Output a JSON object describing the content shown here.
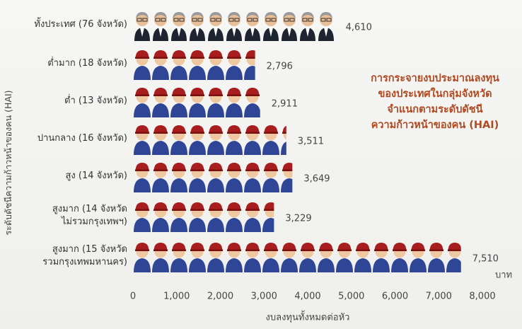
{
  "chart_data": {
    "type": "bar",
    "orientation": "horizontal",
    "y_label": "ระดับดัชนีความก้าวหน้าของคน (HAI)",
    "x_label": "งบลงทุนทั้งหมดต่อหัว",
    "x_unit": "บาท",
    "annotation": "การกระจายงบประมาณลงทุน\nของประเทศในกลุ่มจังหวัด\nจำแนกตามระดับดัชนี\nความก้าวหน้าของคน (HAI)",
    "categories": [
      "ทั้งประเทศ (76 จังหวัด)",
      "ต่ำมาก (18 จังหวัด)",
      "ต่ำ (13 จังหวัด)",
      "ปานกลาง (16 จังหวัด)",
      "สูง (14 จังหวัด)",
      "สูงมาก (14 จังหวัด\nไม่รวมกรุงเทพฯ)",
      "สูงมาก (15 จังหวัด\nรวมกรุงเทพมหานคร)"
    ],
    "values": [
      4610,
      2796,
      2911,
      3511,
      3649,
      3229,
      7510
    ],
    "value_labels": [
      "4,610",
      "2,796",
      "2,911",
      "3,511",
      "3,649",
      "3,229",
      "7,510"
    ],
    "xlim": [
      0,
      8000
    ],
    "xticks": [
      0,
      {
        "value": 1000,
        "label": "1,000"
      },
      {
        "value": 2000,
        "label": "2,000"
      },
      {
        "value": 3000,
        "label": "3,000"
      },
      {
        "value": 4000,
        "label": "4,000"
      },
      {
        "value": 5000,
        "label": "5,000"
      },
      {
        "value": 6000,
        "label": "6,000"
      },
      {
        "value": 7000,
        "label": "7,000"
      },
      {
        "value": 8000,
        "label": "8,000"
      }
    ]
  }
}
